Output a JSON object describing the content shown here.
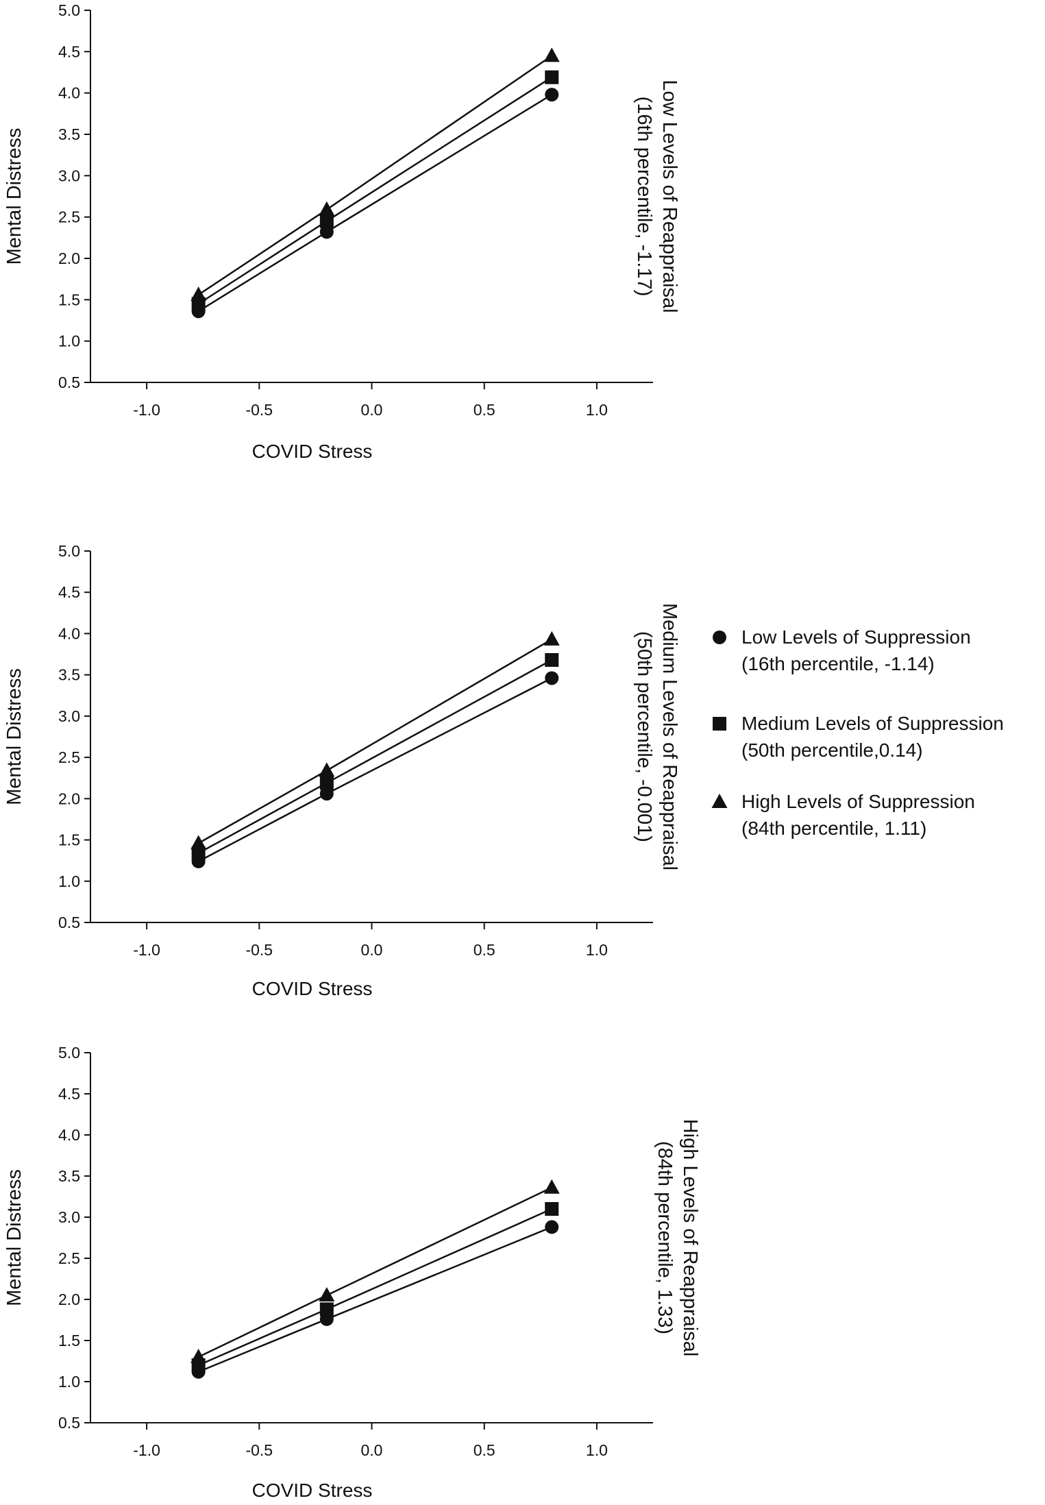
{
  "chart_data": [
    {
      "type": "line",
      "panel_label": [
        "Low Levels of  Reappraisal",
        "(16th percentile, -1.17)"
      ],
      "xlabel": "COVID Stress",
      "ylabel": "Mental Distress",
      "xlim": [
        -1.25,
        1.25
      ],
      "ylim": [
        0.5,
        5.0
      ],
      "xticks": [
        "-1.0",
        "-0.5",
        "0.0",
        "0.5",
        "1.0"
      ],
      "xtick_values": [
        -1.0,
        -0.5,
        0.0,
        0.5,
        1.0
      ],
      "yticks": [
        "0.5",
        "1.0",
        "1.5",
        "2.0",
        "2.5",
        "3.0",
        "3.5",
        "4.0",
        "4.5",
        "5.0"
      ],
      "ytick_values": [
        0.5,
        1.0,
        1.5,
        2.0,
        2.5,
        3.0,
        3.5,
        4.0,
        4.5,
        5.0
      ],
      "x": [
        -0.77,
        -0.2,
        0.8
      ],
      "series": [
        {
          "name": "Low Levels of Suppression",
          "marker": "circle",
          "values": [
            1.36,
            2.32,
            3.98
          ]
        },
        {
          "name": "Medium Levels of Suppression",
          "marker": "square",
          "values": [
            1.45,
            2.45,
            4.19
          ]
        },
        {
          "name": "High Levels of Suppression",
          "marker": "triangle",
          "values": [
            1.56,
            2.59,
            4.45
          ]
        }
      ]
    },
    {
      "type": "line",
      "panel_label": [
        "Medium Levels of Reappraisal",
        "(50th percentile, -0.001)"
      ],
      "xlabel": "COVID Stress",
      "ylabel": "Mental Distress",
      "xlim": [
        -1.25,
        1.25
      ],
      "ylim": [
        0.5,
        5.0
      ],
      "xticks": [
        "-1.0",
        "-0.5",
        "0.0",
        "0.5",
        "1.0"
      ],
      "xtick_values": [
        -1.0,
        -0.5,
        0.0,
        0.5,
        1.0
      ],
      "yticks": [
        "0.5",
        "1.0",
        "1.5",
        "2.0",
        "2.5",
        "3.0",
        "3.5",
        "4.0",
        "4.5",
        "5.0"
      ],
      "ytick_values": [
        0.5,
        1.0,
        1.5,
        2.0,
        2.5,
        3.0,
        3.5,
        4.0,
        4.5,
        5.0
      ],
      "x": [
        -0.77,
        -0.2,
        0.8
      ],
      "series": [
        {
          "name": "Low Levels of Suppression",
          "marker": "circle",
          "values": [
            1.24,
            2.06,
            3.46
          ]
        },
        {
          "name": "Medium Levels of Suppression",
          "marker": "square",
          "values": [
            1.34,
            2.19,
            3.68
          ]
        },
        {
          "name": "High Levels of Suppression",
          "marker": "triangle",
          "values": [
            1.46,
            2.34,
            3.93
          ]
        }
      ]
    },
    {
      "type": "line",
      "panel_label": [
        "High Levels of  Reappraisal",
        "(84th percentile, 1.33)"
      ],
      "xlabel": "COVID Stress",
      "ylabel": "Mental Distress",
      "xlim": [
        -1.25,
        1.25
      ],
      "ylim": [
        0.5,
        5.0
      ],
      "xticks": [
        "-1.0",
        "-0.5",
        "0.0",
        "0.5",
        "1.0"
      ],
      "xtick_values": [
        -1.0,
        -0.5,
        0.0,
        0.5,
        1.0
      ],
      "yticks": [
        "0.5",
        "1.0",
        "1.5",
        "2.0",
        "2.5",
        "3.0",
        "3.5",
        "4.0",
        "4.5",
        "5.0"
      ],
      "ytick_values": [
        0.5,
        1.0,
        1.5,
        2.0,
        2.5,
        3.0,
        3.5,
        4.0,
        4.5,
        5.0
      ],
      "x": [
        -0.77,
        -0.2,
        0.8
      ],
      "series": [
        {
          "name": "Low Levels of Suppression",
          "marker": "circle",
          "values": [
            1.12,
            1.76,
            2.88
          ]
        },
        {
          "name": "Medium Levels of Suppression",
          "marker": "square",
          "values": [
            1.2,
            1.88,
            3.1
          ]
        },
        {
          "name": "High Levels of Suppression",
          "marker": "triangle",
          "values": [
            1.3,
            2.05,
            3.36
          ]
        }
      ]
    }
  ],
  "legend": {
    "placement": "right",
    "entries": [
      {
        "marker": "circle",
        "line1": "Low Levels of Suppression",
        "line2": "(16th percentile, -1.14)"
      },
      {
        "marker": "square",
        "line1": "Medium Levels of Suppression",
        "line2": "(50th percentile,0.14)"
      },
      {
        "marker": "triangle",
        "line1": "High Levels of Suppression",
        "line2": "(84th percentile, 1.11)"
      }
    ]
  },
  "colors": {
    "ink": "#111111",
    "background": "#ffffff"
  }
}
